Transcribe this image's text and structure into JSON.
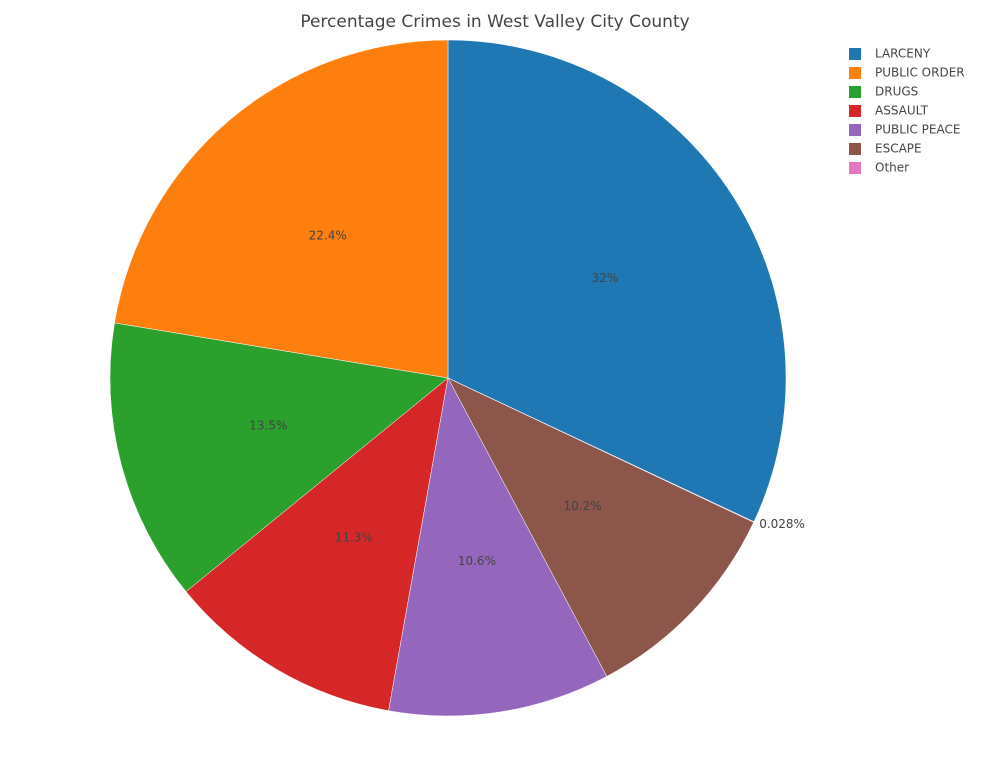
{
  "chart_data": {
    "type": "pie",
    "title": "Percentage Crimes in West Valley City County",
    "categories": [
      "LARCENY",
      "PUBLIC ORDER",
      "DRUGS",
      "ASSAULT",
      "PUBLIC PEACE",
      "ESCAPE",
      "Other"
    ],
    "values": [
      32,
      22.4,
      13.5,
      11.3,
      10.6,
      10.2,
      0.028
    ],
    "value_labels": [
      "32%",
      "22.4%",
      "13.5%",
      "11.3%",
      "10.6%",
      "10.2%",
      "0.028%"
    ],
    "colors": [
      "#1f77b4",
      "#ff7f0e",
      "#2ca02c",
      "#d62728",
      "#9467bd",
      "#8c564b",
      "#e377c2"
    ]
  }
}
